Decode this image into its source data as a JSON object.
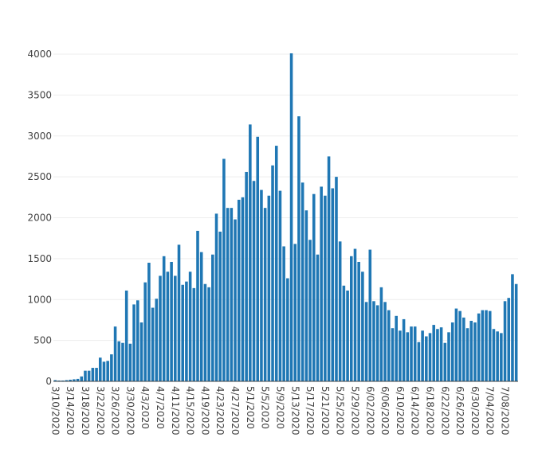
{
  "chart_data": {
    "type": "bar",
    "color": "#1f77b4",
    "grid": true,
    "ylim": [
      0,
      4000
    ],
    "yticks": [
      0,
      500,
      1000,
      1500,
      2000,
      2500,
      3000,
      3500,
      4000
    ],
    "categories": [
      "3/10/2020",
      null,
      null,
      null,
      "3/14/2020",
      null,
      null,
      null,
      "3/18/2020",
      null,
      null,
      null,
      "3/22/2020",
      null,
      null,
      null,
      "3/26/2020",
      null,
      null,
      null,
      "3/30/2020",
      null,
      null,
      null,
      "4/3/2020",
      null,
      null,
      null,
      "4/7/2020",
      null,
      null,
      null,
      "4/11/2020",
      null,
      null,
      null,
      "4/15/2020",
      null,
      null,
      null,
      "4/19/2020",
      null,
      null,
      null,
      "4/23/2020",
      null,
      null,
      null,
      "4/27/2020",
      null,
      null,
      null,
      "5/1/2020",
      null,
      null,
      null,
      "5/5/2020",
      null,
      null,
      null,
      "5/9/2020",
      null,
      null,
      null,
      "5/13/2020",
      null,
      null,
      null,
      "5/17/2020",
      null,
      null,
      null,
      "5/21/2020",
      null,
      null,
      null,
      "5/25/2020",
      null,
      null,
      null,
      "5/29/2020",
      null,
      null,
      null,
      "6/02/2020",
      null,
      null,
      null,
      "6/06/2020",
      null,
      null,
      null,
      "6/10/2020",
      null,
      null,
      null,
      "6/14/2020",
      null,
      null,
      null,
      "6/18/2020",
      null,
      null,
      null,
      "6/22/2020",
      null,
      null,
      null,
      "6/26/2020",
      null,
      null,
      null,
      "6/30/2020",
      null,
      null,
      null,
      "7/04/2020",
      null,
      null,
      null,
      "7/08/2020",
      null,
      null,
      null
    ],
    "values": [
      15,
      10,
      10,
      15,
      20,
      25,
      30,
      60,
      130,
      130,
      165,
      165,
      290,
      240,
      250,
      330,
      670,
      490,
      470,
      1110,
      460,
      940,
      990,
      720,
      1210,
      1450,
      900,
      1010,
      1290,
      1530,
      1340,
      1460,
      1290,
      1670,
      1180,
      1220,
      1340,
      1140,
      1840,
      1580,
      1190,
      1150,
      1550,
      2050,
      1830,
      2720,
      2120,
      2120,
      1980,
      2220,
      2250,
      2560,
      3140,
      2450,
      2990,
      2340,
      2120,
      2270,
      2640,
      2880,
      2330,
      1650,
      1260,
      4010,
      1680,
      3240,
      2430,
      2090,
      1730,
      2290,
      1550,
      2380,
      2270,
      2750,
      2360,
      2500,
      1710,
      1170,
      1110,
      1530,
      1620,
      1460,
      1340,
      970,
      1610,
      980,
      930,
      1150,
      970,
      870,
      650,
      800,
      620,
      760,
      600,
      670,
      670,
      480,
      620,
      550,
      590,
      690,
      640,
      660,
      470,
      600,
      720,
      890,
      860,
      780,
      650,
      740,
      720,
      830,
      870,
      870,
      860,
      640,
      610,
      590,
      980,
      1020,
      1310,
      1190
    ]
  }
}
